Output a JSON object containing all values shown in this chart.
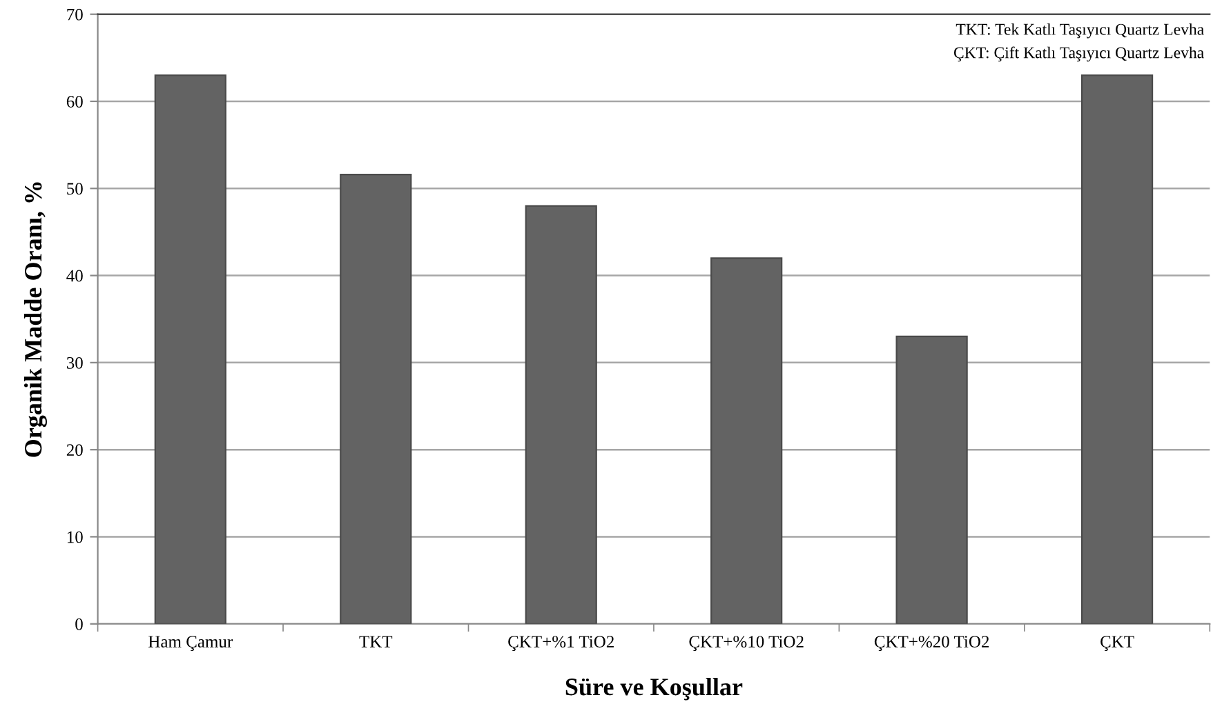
{
  "chart_data": {
    "type": "bar",
    "xlabel": "Süre ve Koşullar",
    "ylabel": "Organik Madde Oranı, %",
    "categories": [
      "Ham Çamur",
      "TKT",
      "ÇKT+%1 TiO2",
      "ÇKT+%10 TiO2",
      "ÇKT+%20 TiO2",
      "ÇKT"
    ],
    "values": [
      63,
      51.6,
      48,
      42,
      33,
      63
    ],
    "color": "#636363",
    "ylim": [
      0,
      70
    ],
    "yticks": [
      0,
      10,
      20,
      30,
      40,
      50,
      60,
      70
    ],
    "grid": "y",
    "annotations": [
      "TKT: Tek Katlı Taşıyıcı Quartz Levha",
      "ÇKT: Çift Katlı Taşıyıcı Quartz Levha"
    ]
  }
}
